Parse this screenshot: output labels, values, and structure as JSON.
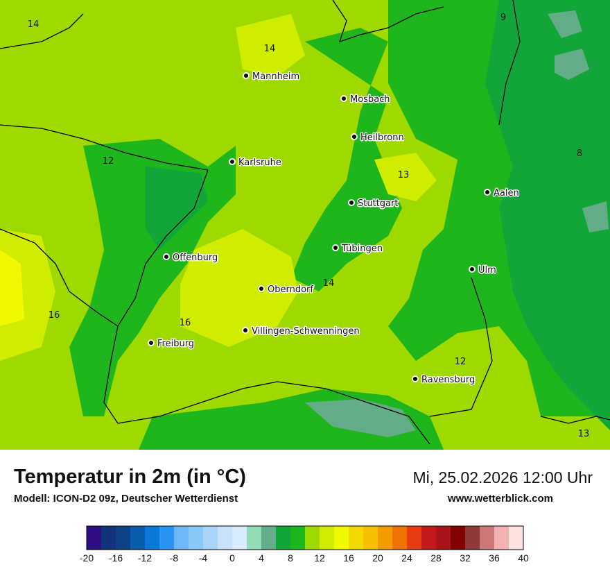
{
  "map": {
    "cities": [
      {
        "name": "Mannheim"
      },
      {
        "name": "Mosbach"
      },
      {
        "name": "Heilbronn"
      },
      {
        "name": "Karlsruhe"
      },
      {
        "name": "Stuttgart"
      },
      {
        "name": "Aalen"
      },
      {
        "name": "Tübingen"
      },
      {
        "name": "Offenburg"
      },
      {
        "name": "Ulm"
      },
      {
        "name": "Oberndorf"
      },
      {
        "name": "Villingen-Schwenningen"
      },
      {
        "name": "Freiburg"
      },
      {
        "name": "Ravensburg"
      }
    ],
    "isotherm_labels": [
      "14",
      "14",
      "9",
      "8",
      "12",
      "13",
      "14",
      "16",
      "16",
      "12",
      "13"
    ]
  },
  "footer": {
    "title": "Temperatur in 2m (in °C)",
    "model": "Modell: ICON-D2 09z, Deutscher Wetterdienst",
    "datetime": "Mi, 25.02.2026 12:00 Uhr",
    "website": "www.wetterblick.com"
  },
  "legend": {
    "colors": [
      "#2e0d82",
      "#11337a",
      "#0d4385",
      "#0b5cad",
      "#0a78d6",
      "#2b93f2",
      "#6fb8f5",
      "#8ac8f8",
      "#a8d4f8",
      "#c6e3fb",
      "#d8ecfd",
      "#92dcb8",
      "#62ac88",
      "#12a63a",
      "#1fb51c",
      "#9ed900",
      "#d0ed00",
      "#f1f900",
      "#f2da00",
      "#f4c000",
      "#f29c00",
      "#f07200",
      "#e63b10",
      "#c21a1a",
      "#a81418",
      "#820000",
      "#8f3a3a",
      "#c97777",
      "#f4b1b1",
      "#fde0e0"
    ],
    "ticks": [
      "-20",
      "-16",
      "-12",
      "-8",
      "-4",
      "0",
      "4",
      "8",
      "12",
      "16",
      "20",
      "24",
      "28",
      "32",
      "36",
      "40"
    ]
  }
}
